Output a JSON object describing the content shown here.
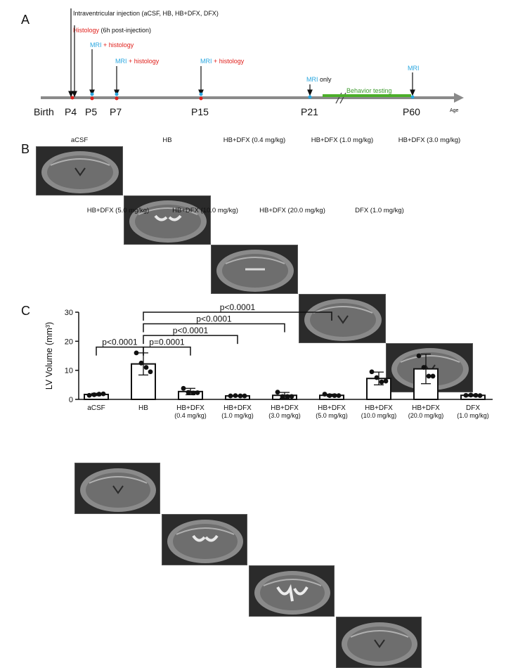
{
  "panelA": {
    "letter": "A",
    "annot_injection": "Intraventricular injection (aCSF, HB, HB+DFX, DFX)",
    "annot_histology_word": "Histology",
    "annot_histology_rest": " (6h post-injection)",
    "mri_word": "MRI",
    "plus_histology": " + histology",
    "only_word": " only",
    "behavior": "Behavior testing",
    "timepoints": [
      "Birth",
      "P4",
      "P5",
      "P7",
      "P15",
      "P21",
      "P60"
    ],
    "age_label": "Age"
  },
  "panelB": {
    "letter": "B",
    "row1_titles": [
      "aCSF",
      "HB",
      "HB+DFX (0.4 mg/kg)",
      "HB+DFX (1.0 mg/kg)",
      "HB+DFX (3.0 mg/kg)"
    ],
    "row2_titles": [
      "HB+DFX (5.0 mg/kg)",
      "HB+DFX (10.0 mg/kg)",
      "HB+DFX (20.0 mg/kg)",
      "DFX (1.0 mg/kg)"
    ]
  },
  "panelC": {
    "letter": "C",
    "chart_data": {
      "type": "bar",
      "ylabel": "LV Volume (mm³)",
      "ylim": [
        0,
        30
      ],
      "yticks": [
        0,
        10,
        20,
        30
      ],
      "categories": [
        [
          "aCSF"
        ],
        [
          "HB"
        ],
        [
          "HB+DFX",
          "(0.4 mg/kg)"
        ],
        [
          "HB+DFX",
          "(1.0 mg/kg)"
        ],
        [
          "HB+DFX",
          "(3.0 mg/kg)"
        ],
        [
          "HB+DFX",
          "(5.0 mg/kg)"
        ],
        [
          "HB+DFX",
          "(10.0 mg/kg)"
        ],
        [
          "HB+DFX",
          "(20.0 mg/kg)"
        ],
        [
          "DFX",
          "(1.0 mg/kg)"
        ]
      ],
      "values": [
        1.7,
        12.2,
        2.7,
        1.2,
        1.4,
        1.4,
        7.2,
        10.5,
        1.4
      ],
      "errors": [
        0.4,
        3.8,
        1.1,
        0.2,
        1.0,
        0.4,
        2.2,
        5.1,
        0.3
      ],
      "points": [
        [
          1.4,
          1.6,
          1.8,
          1.9
        ],
        [
          16.0,
          12.5,
          11.0,
          9.5
        ],
        [
          3.8,
          2.4,
          2.2,
          2.3
        ],
        [
          1.2,
          1.3,
          1.2,
          1.2
        ],
        [
          2.5,
          1.0,
          1.0,
          1.0
        ],
        [
          1.8,
          1.3,
          1.3,
          1.3
        ],
        [
          9.5,
          7.5,
          6.0,
          6.3
        ],
        [
          15.0,
          11.0,
          8.0,
          8.0
        ],
        [
          1.4,
          1.5,
          1.4,
          1.3
        ]
      ],
      "comparisons": [
        {
          "from": 1,
          "to": 5,
          "label": "p<0.0001",
          "y": 30
        },
        {
          "from": 1,
          "to": 4,
          "label": "p<0.0001",
          "y": 26
        },
        {
          "from": 1,
          "to": 3,
          "label": "p<0.0001",
          "y": 22
        },
        {
          "from": 0,
          "to": 1,
          "label": "p<0.0001",
          "y": 18
        },
        {
          "from": 1,
          "to": 2,
          "label": "p=0.0001",
          "y": 18
        }
      ]
    }
  }
}
